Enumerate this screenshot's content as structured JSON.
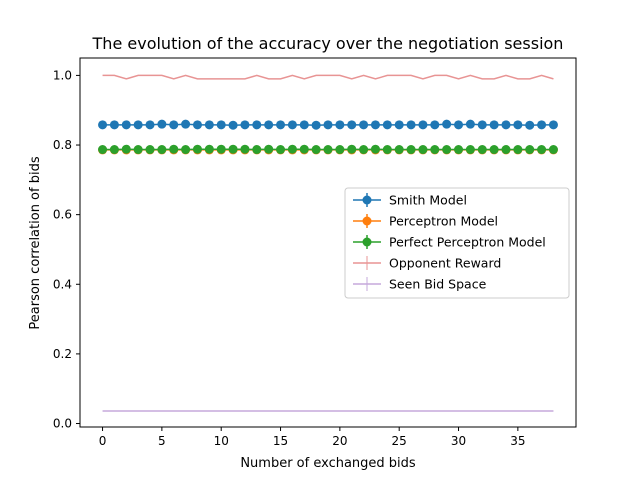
{
  "chart_data": {
    "type": "line",
    "title": "The evolution of the accuracy over the negotiation session",
    "xlabel": "Number of exchanged bids",
    "ylabel": "Pearson correlation of bids",
    "xlim": [
      -1.9,
      39.9
    ],
    "ylim": [
      -0.01,
      1.05
    ],
    "xticks": [
      0,
      5,
      10,
      15,
      20,
      25,
      30,
      35
    ],
    "xtick_labels": [
      "0",
      "5",
      "10",
      "15",
      "20",
      "25",
      "30",
      "35"
    ],
    "yticks": [
      0.0,
      0.2,
      0.4,
      0.6,
      0.8,
      1.0
    ],
    "ytick_labels": [
      "0.0",
      "0.2",
      "0.4",
      "0.6",
      "0.8",
      "1.0"
    ],
    "grid": false,
    "legend_position": "center-right",
    "x": [
      0,
      1,
      2,
      3,
      4,
      5,
      6,
      7,
      8,
      9,
      10,
      11,
      12,
      13,
      14,
      15,
      16,
      17,
      18,
      19,
      20,
      21,
      22,
      23,
      24,
      25,
      26,
      27,
      28,
      29,
      30,
      31,
      32,
      33,
      34,
      35,
      36,
      37,
      38
    ],
    "series": [
      {
        "name": "Smith Model",
        "color": "#1f77b4",
        "marker": "circle",
        "values": [
          0.858,
          0.858,
          0.858,
          0.858,
          0.858,
          0.86,
          0.858,
          0.86,
          0.858,
          0.858,
          0.858,
          0.857,
          0.858,
          0.858,
          0.858,
          0.858,
          0.858,
          0.858,
          0.857,
          0.858,
          0.858,
          0.858,
          0.858,
          0.858,
          0.858,
          0.858,
          0.858,
          0.858,
          0.858,
          0.86,
          0.858,
          0.86,
          0.858,
          0.858,
          0.858,
          0.858,
          0.857,
          0.858,
          0.858
        ]
      },
      {
        "name": "Perceptron Model",
        "color": "#ff7f0e",
        "marker": "circle",
        "values": [
          0.786,
          0.786,
          0.786,
          0.786,
          0.786,
          0.786,
          0.786,
          0.786,
          0.786,
          0.786,
          0.786,
          0.786,
          0.786,
          0.786,
          0.786,
          0.786,
          0.786,
          0.786,
          0.786,
          0.786,
          0.786,
          0.786,
          0.786,
          0.786,
          0.786,
          0.786,
          0.786,
          0.786,
          0.786,
          0.786,
          0.786,
          0.786,
          0.786,
          0.786,
          0.786,
          0.786,
          0.786,
          0.786,
          0.786
        ]
      },
      {
        "name": "Perfect Perceptron Model",
        "color": "#2ca02c",
        "marker": "circle",
        "values": [
          0.787,
          0.787,
          0.788,
          0.787,
          0.787,
          0.787,
          0.788,
          0.787,
          0.788,
          0.788,
          0.788,
          0.788,
          0.788,
          0.787,
          0.788,
          0.787,
          0.788,
          0.788,
          0.787,
          0.787,
          0.787,
          0.788,
          0.787,
          0.788,
          0.787,
          0.787,
          0.787,
          0.787,
          0.787,
          0.787,
          0.787,
          0.787,
          0.787,
          0.787,
          0.787,
          0.787,
          0.787,
          0.787,
          0.787
        ]
      },
      {
        "name": "Opponent Reward",
        "color": "#e89494",
        "marker": "none",
        "values": [
          1.0,
          1.0,
          0.99,
          1.0,
          1.0,
          1.0,
          0.99,
          1.0,
          0.99,
          0.99,
          0.99,
          0.99,
          0.99,
          1.0,
          0.99,
          0.99,
          1.0,
          0.99,
          1.0,
          1.0,
          1.0,
          0.99,
          1.0,
          0.99,
          1.0,
          1.0,
          1.0,
          0.99,
          1.0,
          1.0,
          0.99,
          1.0,
          0.99,
          0.99,
          1.0,
          0.99,
          0.99,
          1.0,
          0.99
        ]
      },
      {
        "name": "Seen Bid Space",
        "color": "#c5a8db",
        "marker": "none",
        "values": [
          0.036,
          0.036,
          0.036,
          0.036,
          0.036,
          0.036,
          0.036,
          0.036,
          0.036,
          0.036,
          0.036,
          0.036,
          0.036,
          0.036,
          0.036,
          0.036,
          0.036,
          0.036,
          0.036,
          0.036,
          0.036,
          0.036,
          0.036,
          0.036,
          0.036,
          0.036,
          0.036,
          0.036,
          0.036,
          0.036,
          0.036,
          0.036,
          0.036,
          0.036,
          0.036,
          0.036,
          0.036,
          0.036,
          0.036
        ]
      }
    ]
  }
}
